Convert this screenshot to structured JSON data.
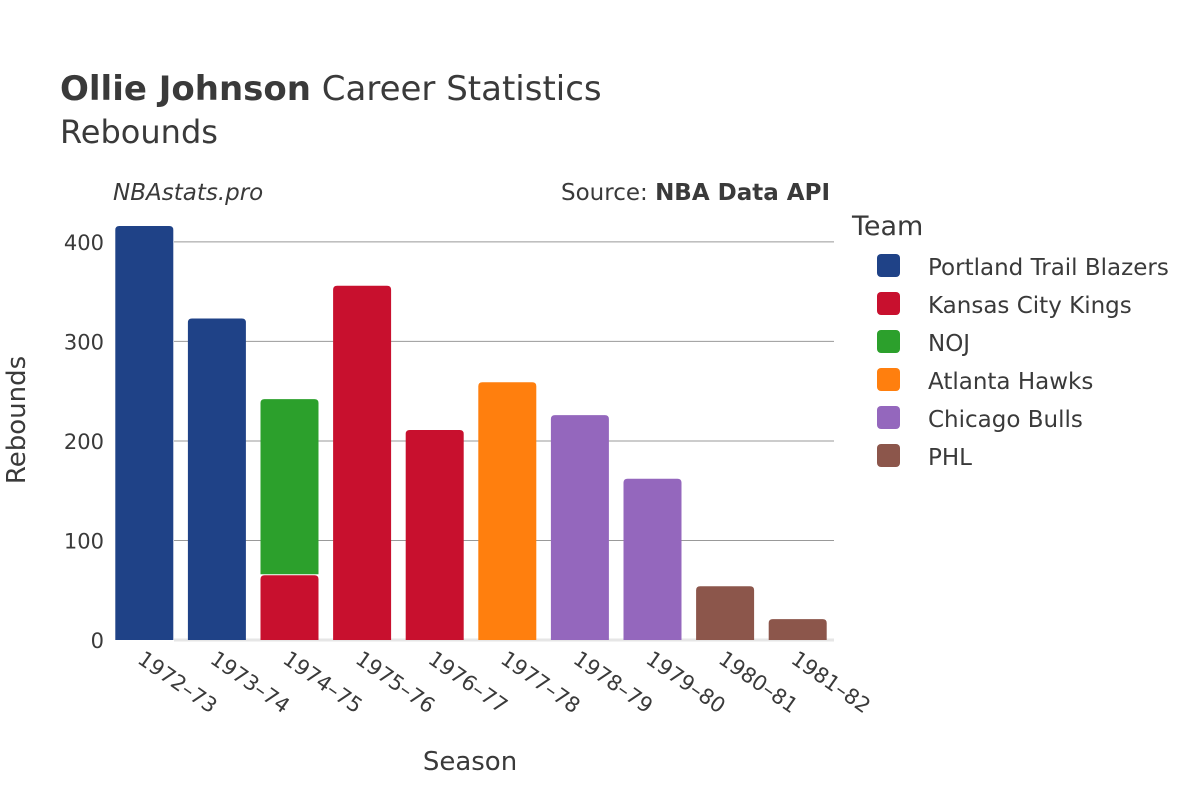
{
  "header": {
    "title_bold": "Ollie Johnson",
    "title_rest": " Career Statistics",
    "subtitle": "Rebounds",
    "watermark": "NBAstats.pro",
    "source_prefix": "Source: ",
    "source_name": "NBA Data API"
  },
  "legend": {
    "title": "Team"
  },
  "chart_data": {
    "type": "bar",
    "stacked": true,
    "xlabel": "Season",
    "ylabel": "Rebounds",
    "ylim": [
      0,
      420
    ],
    "yticks": [
      0,
      100,
      200,
      300,
      400
    ],
    "grid": true,
    "legend_position": "right",
    "categories": [
      "1972–73",
      "1973–74",
      "1974–75",
      "1975–76",
      "1976–77",
      "1977–78",
      "1978–79",
      "1979–80",
      "1980–81",
      "1981–82"
    ],
    "series": [
      {
        "name": "Portland Trail Blazers",
        "color": "#1f4287",
        "values": [
          416,
          323,
          null,
          null,
          null,
          null,
          null,
          null,
          null,
          null
        ]
      },
      {
        "name": "Kansas City Kings",
        "color": "#c8102e",
        "values": [
          null,
          null,
          65,
          356,
          211,
          null,
          null,
          null,
          null,
          null
        ]
      },
      {
        "name": "NOJ",
        "color": "#2ca02c",
        "values": [
          null,
          null,
          177,
          null,
          null,
          null,
          null,
          null,
          null,
          null
        ]
      },
      {
        "name": "Atlanta Hawks",
        "color": "#ff7f0e",
        "values": [
          null,
          null,
          null,
          null,
          null,
          259,
          null,
          null,
          null,
          null
        ]
      },
      {
        "name": "Chicago Bulls",
        "color": "#9467bd",
        "values": [
          null,
          null,
          null,
          null,
          null,
          null,
          226,
          162,
          null,
          null
        ]
      },
      {
        "name": "PHL",
        "color": "#8c564b",
        "values": [
          null,
          null,
          null,
          null,
          null,
          null,
          null,
          null,
          54,
          21
        ]
      }
    ]
  }
}
